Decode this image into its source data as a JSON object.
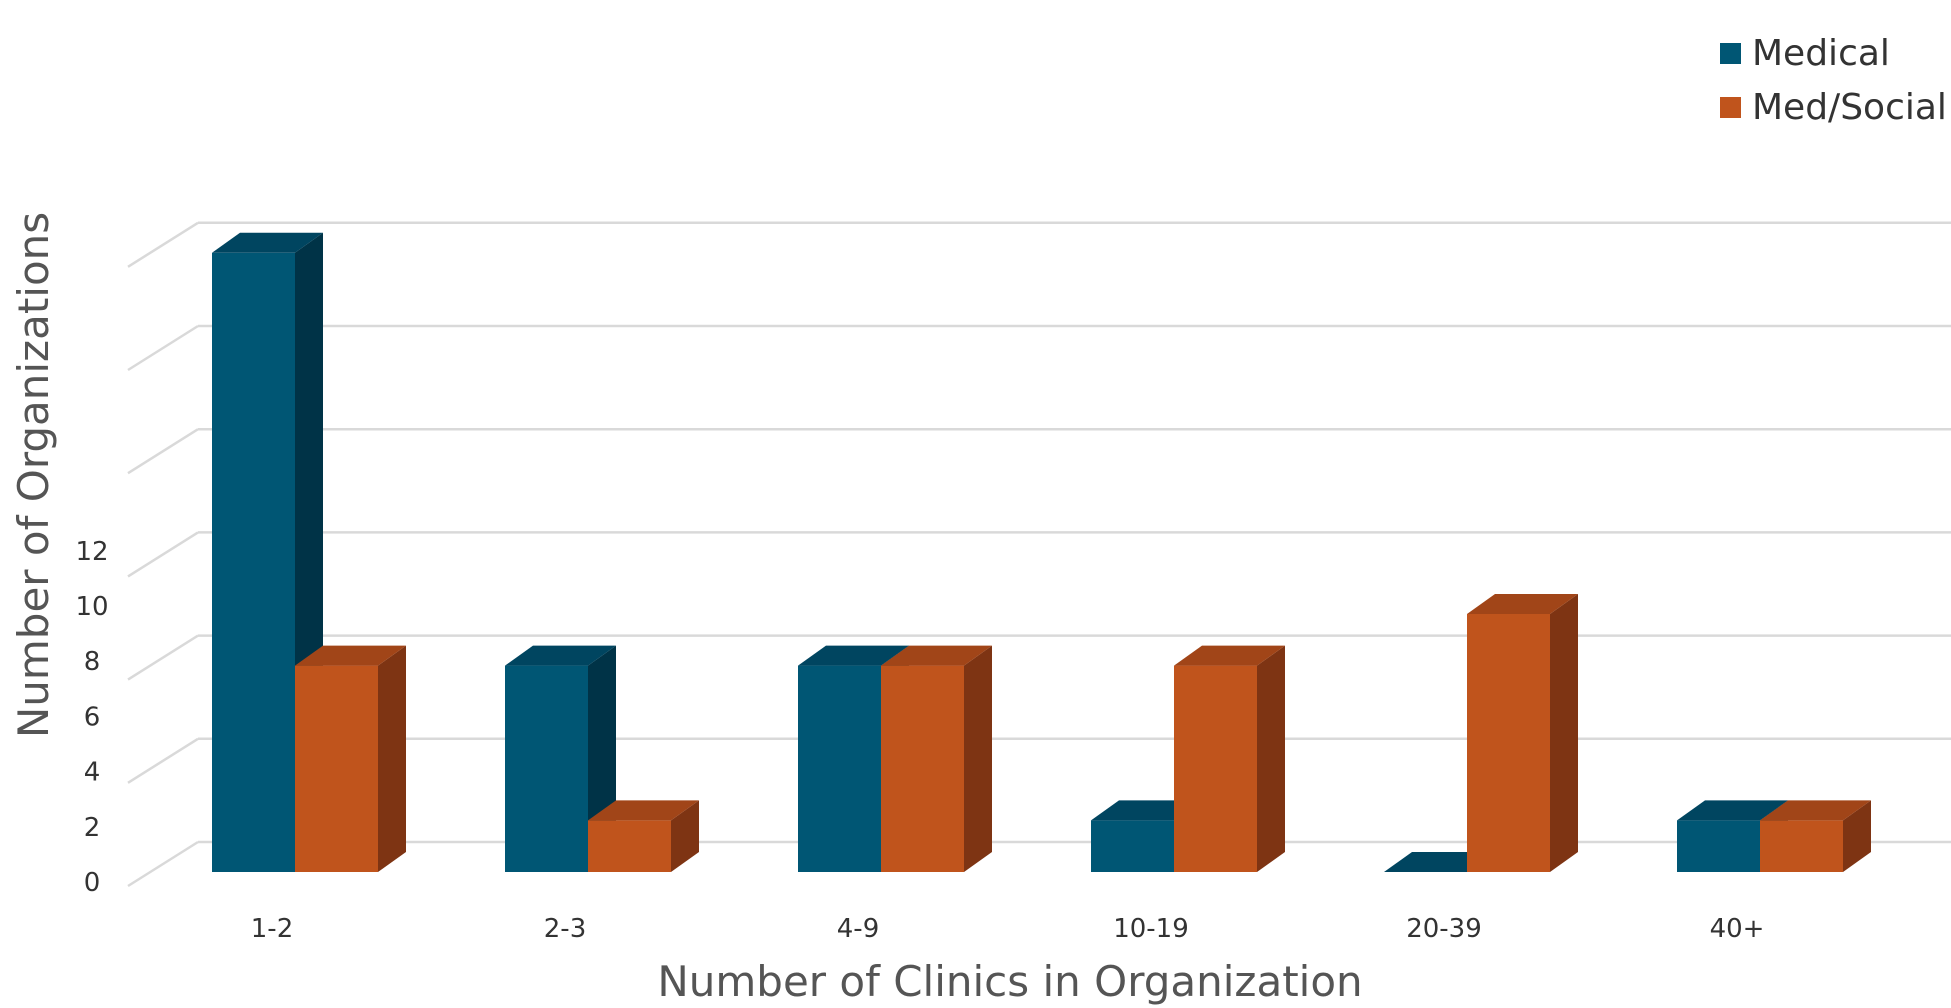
{
  "chart_data": {
    "type": "bar",
    "style": "3d-clustered-column",
    "categories": [
      "1-2",
      "2-3",
      "4-9",
      "10-19",
      "20-39",
      "40+"
    ],
    "series": [
      {
        "name": "Medical",
        "values": [
          12,
          4,
          4,
          1,
          0,
          1
        ],
        "color": "#005674",
        "top_color": "#004560",
        "side_color": "#003347"
      },
      {
        "name": "Med/Social",
        "values": [
          4,
          1,
          4,
          4,
          5,
          1
        ],
        "color": "#C0541C",
        "top_color": "#A14518",
        "side_color": "#7E3413"
      }
    ],
    "title": "",
    "xlabel": "Number of Clinics in Organization",
    "ylabel": "Number of Organizations",
    "ylim": [
      0,
      12
    ],
    "yticks": [
      0,
      2,
      4,
      6,
      8,
      10,
      12
    ],
    "grid": true,
    "legend_position": "top-right"
  }
}
